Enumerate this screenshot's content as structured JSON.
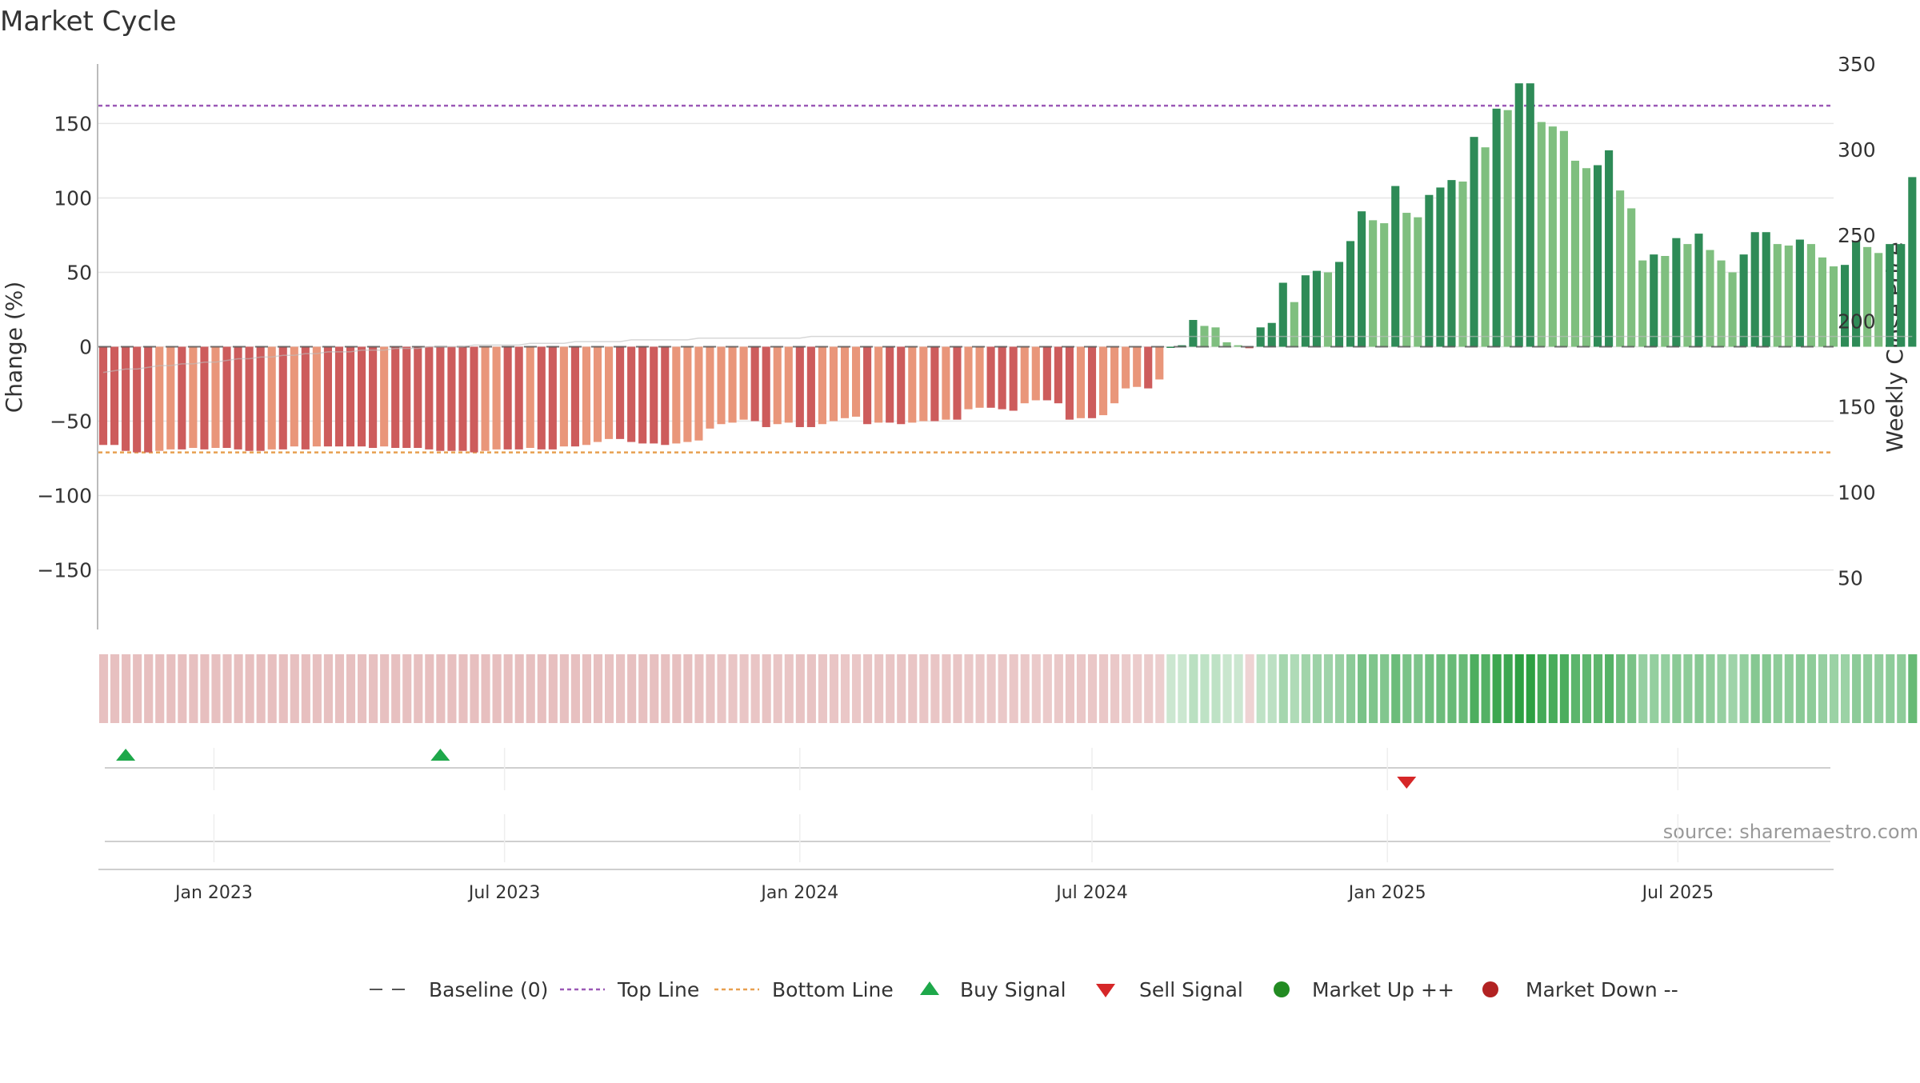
{
  "chart_data": {
    "type": "bar",
    "title": "Market Cycle",
    "ylabel_left": "Change (%)",
    "ylabel_right": "Weekly Close Price",
    "source": "source: sharemaestro.com",
    "ylim_left": [
      -190,
      190
    ],
    "ylim_right": [
      20,
      350
    ],
    "yticks_left": [
      150,
      100,
      50,
      0,
      -50,
      -100,
      -150
    ],
    "ytick_labels_left": [
      "150",
      "100",
      "50",
      "0",
      "−50",
      "−100",
      "−150"
    ],
    "yticks_right": [
      350,
      300,
      250,
      200,
      150,
      100,
      50
    ],
    "ytick_labels_right": [
      "350",
      "300",
      "250",
      "200",
      "150",
      "100",
      "50"
    ],
    "top_line": 162,
    "bottom_line": -71,
    "x_start": "2022-10-21",
    "x_end": "2025-10-06",
    "bar_dates_start": "2022-10-24",
    "bar_interval_days": 7,
    "xticks": [
      "2023-01-01",
      "2023-07-01",
      "2024-01-01",
      "2024-07-01",
      "2025-01-01",
      "2025-07-01"
    ],
    "xtick_labels": [
      "Jan 2023",
      "Jul 2023",
      "Jan 2024",
      "Jul 2024",
      "Jan 2025",
      "Jul 2025"
    ],
    "values": [
      -66,
      -66,
      -70,
      -71,
      -71,
      -70,
      -69,
      -69,
      -68,
      -69,
      -68,
      -68,
      -69,
      -70,
      -70,
      -69,
      -69,
      -67,
      -69,
      -67,
      -67,
      -67,
      -67,
      -67,
      -68,
      -67,
      -68,
      -68,
      -68,
      -69,
      -70,
      -70,
      -70,
      -71,
      -70,
      -69,
      -69,
      -69,
      -68,
      -69,
      -69,
      -67,
      -67,
      -66,
      -64,
      -62,
      -62,
      -64,
      -65,
      -65,
      -66,
      -65,
      -64,
      -63,
      -55,
      -52,
      -51,
      -49,
      -50,
      -54,
      -52,
      -51,
      -54,
      -54,
      -52,
      -50,
      -48,
      -47,
      -52,
      -51,
      -51,
      -52,
      -51,
      -50,
      -50,
      -49,
      -49,
      -42,
      -41,
      -41,
      -42,
      -43,
      -38,
      -36,
      -36,
      -38,
      -49,
      -48,
      -48,
      -46,
      -38,
      -28,
      -27,
      -28,
      -22,
      0,
      1,
      18,
      14,
      13,
      3,
      1,
      -1,
      13,
      16,
      43,
      30,
      48,
      51,
      50,
      57,
      71,
      91,
      85,
      83,
      108,
      90,
      87,
      102,
      107,
      112,
      111,
      141,
      134,
      160,
      159,
      177,
      177,
      151,
      148,
      145,
      125,
      120,
      122,
      132,
      105,
      93,
      58,
      62,
      61,
      73,
      69,
      76,
      65,
      58,
      50,
      62,
      77,
      77,
      69,
      68,
      72,
      69,
      60,
      54,
      55,
      71,
      67,
      63,
      69,
      69,
      114
    ],
    "price": [
      170,
      171,
      172,
      172,
      173,
      174,
      174,
      175,
      175,
      176,
      176,
      177,
      178,
      178,
      179,
      179,
      180,
      180,
      181,
      181,
      182,
      182,
      182,
      183,
      183,
      183,
      184,
      184,
      184,
      185,
      185,
      185,
      185,
      186,
      186,
      186,
      186,
      186,
      187,
      187,
      187,
      187,
      188,
      188,
      188,
      188,
      188,
      189,
      189,
      189,
      189,
      189,
      189,
      190,
      190,
      190,
      190,
      190,
      190,
      190,
      190,
      190,
      190,
      191,
      191,
      191,
      191,
      191,
      191,
      191,
      191,
      191,
      191,
      191,
      191,
      191,
      191,
      191,
      191,
      191,
      191,
      191,
      191,
      191,
      191,
      191,
      191,
      191,
      191,
      191,
      191,
      191,
      191,
      191,
      191,
      191,
      191,
      191,
      191,
      191,
      191,
      191,
      191,
      191,
      191,
      191,
      191,
      191,
      191,
      191,
      191,
      191,
      191,
      191,
      191,
      191,
      191,
      191,
      191,
      191,
      191,
      191,
      191,
      191,
      191,
      191,
      191,
      191,
      191,
      191,
      191,
      191,
      191,
      191,
      191,
      191,
      191,
      191,
      191,
      191,
      191,
      191,
      191,
      191,
      191,
      191,
      191,
      191,
      191,
      191,
      191,
      191,
      191,
      191,
      191,
      191,
      191,
      191,
      191,
      191,
      191,
      191
    ],
    "buy_signals": [
      "2022-11-07",
      "2023-05-22"
    ],
    "sell_signals": [
      "2025-01-13"
    ],
    "colors": {
      "strong_down": "#cd5c5c",
      "mild_down": "#e9967a",
      "strong_up": "#2e8b57",
      "mild_up": "#7fbf7f",
      "top_line": "#9b59b6",
      "bottom_line": "#e8a050",
      "baseline": "#555555",
      "buy": "#1ea84a",
      "sell": "#d62728",
      "market_up": "#228b22",
      "market_down": "#b22222"
    },
    "legend_position": "bottom-center",
    "legend": [
      {
        "key": "baseline",
        "label": "Baseline (0)",
        "marker": "dash"
      },
      {
        "key": "top_line",
        "label": "Top Line",
        "marker": "dotted",
        "color": "#9b59b6"
      },
      {
        "key": "bottom_line",
        "label": "Bottom Line",
        "marker": "dotted",
        "color": "#e8a050"
      },
      {
        "key": "buy",
        "label": "Buy Signal",
        "marker": "triangle-up",
        "color": "#1ea84a"
      },
      {
        "key": "sell",
        "label": "Sell Signal",
        "marker": "triangle-down",
        "color": "#d62728"
      },
      {
        "key": "market_up",
        "label": "Market Up ++",
        "marker": "circle",
        "color": "#228b22"
      },
      {
        "key": "market_down",
        "label": "Market Down --",
        "marker": "circle",
        "color": "#b22222"
      }
    ],
    "grid": true
  }
}
